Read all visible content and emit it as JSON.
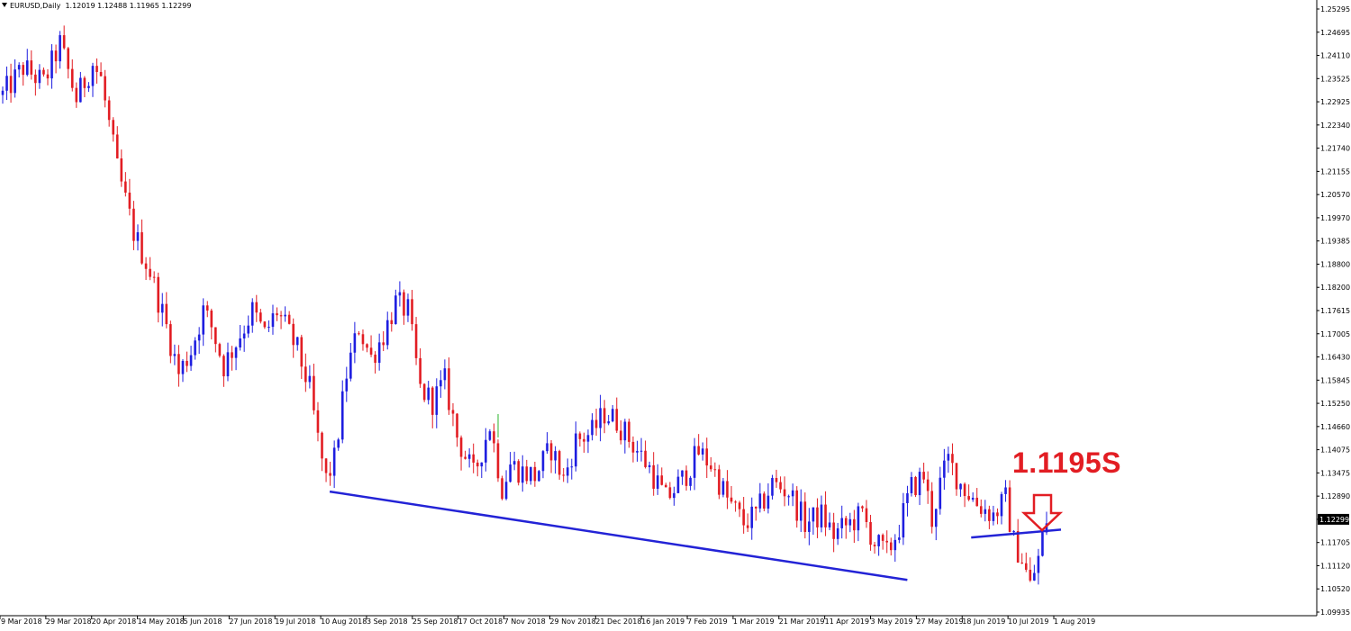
{
  "header": {
    "symbol": "EURUSD,Daily",
    "ohlc": "1.12019 1.12488 1.11965 1.12299"
  },
  "annotation": {
    "text": "1.1195S",
    "color": "#e21d23"
  },
  "colors": {
    "bull": "#1e1ee0",
    "bear": "#e21d23",
    "doji": "#2db52d",
    "trendline": "#2323d6",
    "price_box": "#000000"
  },
  "chart_data": {
    "type": "candlestick",
    "title": "",
    "symbol": "EURUSD",
    "timeframe": "Daily",
    "ylim": [
      1.0993,
      1.2529
    ],
    "y_ticks": [
      "1.25295",
      "1.24695",
      "1.24110",
      "1.23525",
      "1.22925",
      "1.22340",
      "1.21740",
      "1.21155",
      "1.20570",
      "1.19970",
      "1.19385",
      "1.18800",
      "1.18200",
      "1.17615",
      "1.17005",
      "1.16430",
      "1.15845",
      "1.15250",
      "1.14660",
      "1.14075",
      "1.13475",
      "1.12890",
      "1.12299",
      "1.11705",
      "1.11120",
      "1.10520",
      "1.09935"
    ],
    "x_ticks": [
      "9 Mar 2018",
      "29 Mar 2018",
      "20 Apr 2018",
      "14 May 2018",
      "5 Jun 2018",
      "27 Jun 2018",
      "19 Jul 2018",
      "10 Aug 2018",
      "3 Sep 2018",
      "25 Sep 2018",
      "17 Oct 2018",
      "7 Nov 2018",
      "29 Nov 2018",
      "21 Dec 2018",
      "16 Jan 2019",
      "7 Feb 2019",
      "1 Mar 2019",
      "21 Mar 2019",
      "11 Apr 2019",
      "3 May 2019",
      "27 May 2019",
      "18 Jun 2019",
      "10 Jul 2019",
      "1 Aug 2019"
    ],
    "current_price": "1.12299",
    "path_points": [
      [
        0,
        1.231
      ],
      [
        5,
        1.238
      ],
      [
        10,
        1.234
      ],
      [
        14,
        1.244
      ],
      [
        18,
        1.23
      ],
      [
        22,
        1.239
      ],
      [
        24,
        1.235
      ],
      [
        28,
        1.212
      ],
      [
        32,
        1.196
      ],
      [
        36,
        1.186
      ],
      [
        40,
        1.172
      ],
      [
        43,
        1.16
      ],
      [
        46,
        1.166
      ],
      [
        49,
        1.176
      ],
      [
        51,
        1.172
      ],
      [
        54,
        1.162
      ],
      [
        57,
        1.168
      ],
      [
        61,
        1.176
      ],
      [
        64,
        1.17
      ],
      [
        67,
        1.176
      ],
      [
        70,
        1.17
      ],
      [
        72,
        1.166
      ],
      [
        75,
        1.156
      ],
      [
        77,
        1.143
      ],
      [
        79,
        1.133
      ],
      [
        81,
        1.138
      ],
      [
        84,
        1.16
      ],
      [
        87,
        1.172
      ],
      [
        90,
        1.164
      ],
      [
        93,
        1.17
      ],
      [
        96,
        1.178
      ],
      [
        99,
        1.176
      ],
      [
        102,
        1.156
      ],
      [
        105,
        1.153
      ],
      [
        108,
        1.158
      ],
      [
        111,
        1.144
      ],
      [
        115,
        1.134
      ],
      [
        119,
        1.147
      ],
      [
        122,
        1.131
      ],
      [
        124,
        1.137
      ],
      [
        127,
        1.135
      ],
      [
        130,
        1.134
      ],
      [
        134,
        1.141
      ],
      [
        137,
        1.133
      ],
      [
        140,
        1.143
      ],
      [
        144,
        1.145
      ],
      [
        147,
        1.15
      ],
      [
        150,
        1.148
      ],
      [
        154,
        1.142
      ],
      [
        158,
        1.136
      ],
      [
        162,
        1.128
      ],
      [
        166,
        1.133
      ],
      [
        170,
        1.14
      ],
      [
        173,
        1.137
      ],
      [
        177,
        1.128
      ],
      [
        181,
        1.122
      ],
      [
        184,
        1.124
      ],
      [
        188,
        1.132
      ],
      [
        192,
        1.13
      ],
      [
        196,
        1.122
      ],
      [
        200,
        1.124
      ],
      [
        203,
        1.119
      ],
      [
        207,
        1.122
      ],
      [
        210,
        1.124
      ],
      [
        213,
        1.117
      ],
      [
        216,
        1.114
      ],
      [
        219,
        1.121
      ],
      [
        222,
        1.131
      ],
      [
        225,
        1.134
      ],
      [
        227,
        1.123
      ],
      [
        229,
        1.132
      ],
      [
        231,
        1.138
      ],
      [
        234,
        1.132
      ],
      [
        238,
        1.127
      ],
      [
        242,
        1.124
      ],
      [
        245,
        1.128
      ],
      [
        247,
        1.117
      ],
      [
        249,
        1.113
      ],
      [
        251,
        1.106
      ],
      [
        253,
        1.113
      ],
      [
        255,
        1.123
      ]
    ],
    "n_bars": 256,
    "trendlines": [
      {
        "from": [
          "10 Aug 2018",
          1.13
        ],
        "to": [
          "27 May 2019",
          1.1075
        ]
      },
      {
        "from": [
          "18 Jun 2019",
          1.1183
        ],
        "to": [
          "1 Aug 2019",
          1.1203
        ]
      }
    ],
    "grid": false
  }
}
